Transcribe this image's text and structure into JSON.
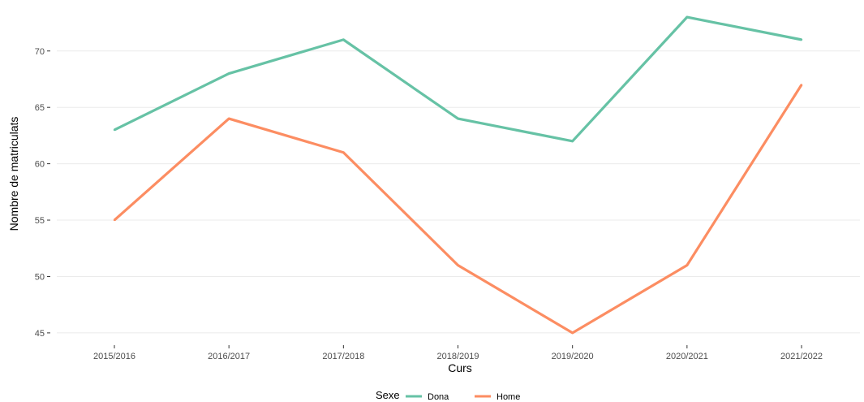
{
  "chart_data": {
    "type": "line",
    "title": "",
    "xlabel": "Curs",
    "ylabel": "Nombre de matriculats",
    "categories": [
      "2015/2016",
      "2016/2017",
      "2017/2018",
      "2018/2019",
      "2019/2020",
      "2020/2021",
      "2021/2022"
    ],
    "series": [
      {
        "name": "Dona",
        "color": "#66c2a5",
        "values": [
          63,
          68,
          71,
          64,
          62,
          73,
          71
        ]
      },
      {
        "name": "Home",
        "color": "#fc8d62",
        "values": [
          55,
          64,
          61,
          51,
          45,
          51,
          67
        ]
      }
    ],
    "yticks": [
      45,
      50,
      55,
      60,
      65,
      70
    ],
    "ylim": [
      44.2,
      73.8
    ],
    "grid": true,
    "legend": {
      "title": "Sexe",
      "position": "bottom"
    }
  }
}
